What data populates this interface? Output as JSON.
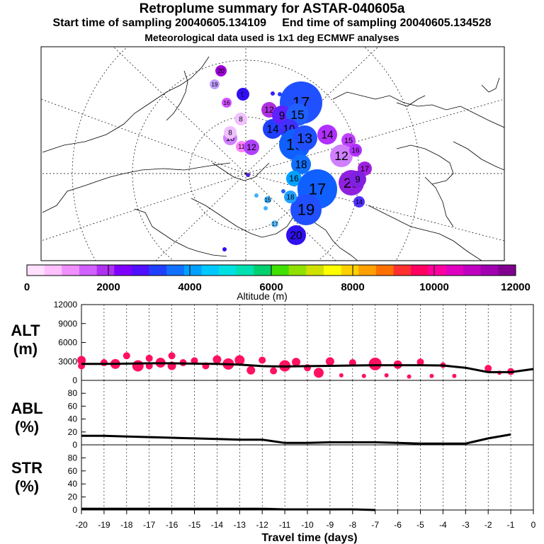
{
  "header": {
    "title": "Retroplume summary for ASTAR-040605a",
    "start_label": "Start time of sampling 20040605.134109",
    "end_label": "End time of sampling 20040605.134528",
    "met_line": "Meteorological data used is 1x1 deg ECMWF analyses"
  },
  "colorbar": {
    "label": "Altitude (m)",
    "ticks": [
      "0",
      "2000",
      "4000",
      "6000",
      "8000",
      "10000",
      "12000"
    ],
    "colors": [
      "#ffe0ff",
      "#ffc0ff",
      "#f090ff",
      "#d060ff",
      "#b030f0",
      "#8000ff",
      "#5010ff",
      "#2040ff",
      "#1070ff",
      "#00a0ff",
      "#00c8ff",
      "#00e0e0",
      "#00e0b0",
      "#00d070",
      "#40e000",
      "#90e000",
      "#d0e000",
      "#ffff00",
      "#ffd000",
      "#ffa000",
      "#ff7000",
      "#ff3030",
      "#ff0060",
      "#ff00a0",
      "#e000c0",
      "#c000c0",
      "#a000b0",
      "#800090"
    ]
  },
  "map": {
    "clusters": [
      {
        "label": "20",
        "color": "#a000d8",
        "r": 8
      },
      {
        "label": "19",
        "color": "#c0a0ff",
        "r": 7
      },
      {
        "label": "17",
        "color": "#2050ff",
        "r": 30
      },
      {
        "label": "16",
        "color": "#d050ff",
        "r": 7
      },
      {
        "label": "9",
        "color": "#3010f0",
        "r": 9
      },
      {
        "label": "12",
        "color": "#b030e0",
        "r": 11
      },
      {
        "label": "8",
        "color": "#f0c0ff",
        "r": 9
      },
      {
        "label": "14",
        "color": "#2040ff",
        "r": 14
      },
      {
        "label": "9",
        "color": "#6020ff",
        "r": 14
      },
      {
        "label": "10",
        "color": "#d080ff",
        "r": 10
      },
      {
        "label": "8",
        "color": "#f0c0ff",
        "r": 9
      },
      {
        "label": "11",
        "color": "#ff80ff",
        "r": 8
      },
      {
        "label": "12",
        "color": "#b040ff",
        "r": 11
      },
      {
        "label": "15",
        "color": "#2060ff",
        "r": 16
      },
      {
        "label": "10",
        "color": "#4030ff",
        "r": 14
      },
      {
        "label": "19",
        "color": "#1060ff",
        "r": 22
      },
      {
        "label": "13",
        "color": "#2050ff",
        "r": 18
      },
      {
        "label": "14",
        "color": "#b030ff",
        "r": 14
      },
      {
        "label": "15",
        "color": "#c040ff",
        "r": 10
      },
      {
        "label": "12",
        "color": "#d080ff",
        "r": 16
      },
      {
        "label": "16",
        "color": "#b030ff",
        "r": 9
      },
      {
        "label": "17",
        "color": "#a020e0",
        "r": 10
      },
      {
        "label": "20",
        "color": "#9020e0",
        "r": 18
      },
      {
        "label": "9",
        "color": "#8020e0",
        "r": 12
      },
      {
        "label": "18",
        "color": "#1070ff",
        "r": 14
      },
      {
        "label": "16",
        "color": "#00a0ff",
        "r": 11
      },
      {
        "label": "17",
        "color": "#1060ff",
        "r": 28
      },
      {
        "label": "19",
        "color": "#2050ff",
        "r": 22
      },
      {
        "label": "18",
        "color": "#20a0ff",
        "r": 9
      },
      {
        "label": "15",
        "color": "#40b0ff",
        "r": 5
      },
      {
        "label": "17",
        "color": "#60c0ff",
        "r": 5
      },
      {
        "label": "14",
        "color": "#5030ff",
        "r": 8
      },
      {
        "label": "20",
        "color": "#3010f0",
        "r": 14
      }
    ]
  },
  "chart_data": [
    {
      "type": "scatter",
      "name": "ALT",
      "ylabel_line1": "ALT",
      "ylabel_line2": "(m)",
      "ylim": [
        0,
        12000
      ],
      "yticks": [
        "0",
        "3000",
        "6000",
        "9000",
        "12000"
      ],
      "xlim": [
        -20,
        0
      ],
      "line": {
        "x": [
          -20,
          -19,
          -18,
          -17,
          -16,
          -15,
          -14,
          -13,
          -12,
          -11,
          -10,
          -9,
          -8,
          -7,
          -6,
          -5,
          -4,
          -3,
          -2,
          -1,
          0
        ],
        "y": [
          2600,
          2600,
          2650,
          2700,
          2700,
          2650,
          2600,
          2500,
          2250,
          2200,
          2250,
          2300,
          2350,
          2400,
          2400,
          2400,
          2350,
          2000,
          1300,
          1300,
          1800
        ]
      },
      "points": {
        "x": [
          -20,
          -20,
          -19,
          -18.5,
          -18,
          -17.5,
          -17,
          -17,
          -16.5,
          -16,
          -16,
          -15.5,
          -15,
          -14.5,
          -14,
          -13.5,
          -13,
          -12.5,
          -12,
          -11.5,
          -11,
          -10.5,
          -10,
          -9.5,
          -9,
          -8.5,
          -8,
          -7.5,
          -7,
          -6.5,
          -6,
          -5.5,
          -5,
          -4.5,
          -4,
          -3.5,
          -2,
          -1.5,
          -1
        ],
        "y": [
          3200,
          2300,
          2800,
          2600,
          3900,
          2300,
          3500,
          2300,
          2800,
          3900,
          2300,
          2800,
          3100,
          2300,
          3300,
          2600,
          3200,
          1600,
          3200,
          1500,
          2300,
          2900,
          2000,
          1200,
          3000,
          800,
          2800,
          700,
          2600,
          800,
          2500,
          600,
          2900,
          700,
          2400,
          700,
          1900,
          1200,
          1400
        ],
        "size": [
          6,
          5,
          5,
          7,
          5,
          8,
          5,
          5,
          7,
          5,
          6,
          5,
          5,
          5,
          6,
          8,
          7,
          6,
          5,
          5,
          8,
          6,
          5,
          7,
          6,
          3,
          5,
          3,
          9,
          3,
          6,
          3,
          5,
          3,
          4,
          3,
          5,
          3,
          5
        ]
      },
      "point_color": "#ff1060"
    },
    {
      "type": "line",
      "name": "ABL",
      "ylabel_line1": "ABL",
      "ylabel_line2": "(%)",
      "ylim": [
        0,
        100
      ],
      "yticks": [
        "0",
        "20",
        "40",
        "60",
        "80"
      ],
      "xlim": [
        -20,
        0
      ],
      "x": [
        -20,
        -19,
        -18,
        -17,
        -16,
        -15,
        -14,
        -13,
        -12,
        -11,
        -10,
        -9,
        -8,
        -7,
        -6,
        -5,
        -4,
        -3,
        -2,
        -1
      ],
      "y": [
        14,
        14,
        13,
        12,
        11,
        10,
        9,
        8,
        8,
        3,
        3,
        4,
        4,
        4,
        3,
        2,
        2,
        2,
        10,
        16
      ]
    },
    {
      "type": "line",
      "name": "STR",
      "ylabel_line1": "STR",
      "ylabel_line2": "(%)",
      "ylim": [
        0,
        100
      ],
      "yticks": [
        "0",
        "20",
        "40",
        "60",
        "80"
      ],
      "xlim": [
        -20,
        0
      ],
      "x": [
        -20,
        -19,
        -18,
        -17,
        -16,
        -15,
        -14,
        -13,
        -12,
        -11,
        -10,
        -9,
        -8,
        -7
      ],
      "y": [
        2,
        2,
        2,
        2,
        2,
        2,
        2,
        2,
        2,
        1,
        1,
        1,
        1,
        0
      ]
    }
  ],
  "xaxis": {
    "label": "Travel time (days)",
    "ticks": [
      "-20",
      "-19",
      "-18",
      "-17",
      "-16",
      "-15",
      "-14",
      "-13",
      "-12",
      "-11",
      "-10",
      "-9",
      "-8",
      "-7",
      "-6",
      "-5",
      "-4",
      "-3",
      "-2",
      "-1",
      "0"
    ]
  }
}
